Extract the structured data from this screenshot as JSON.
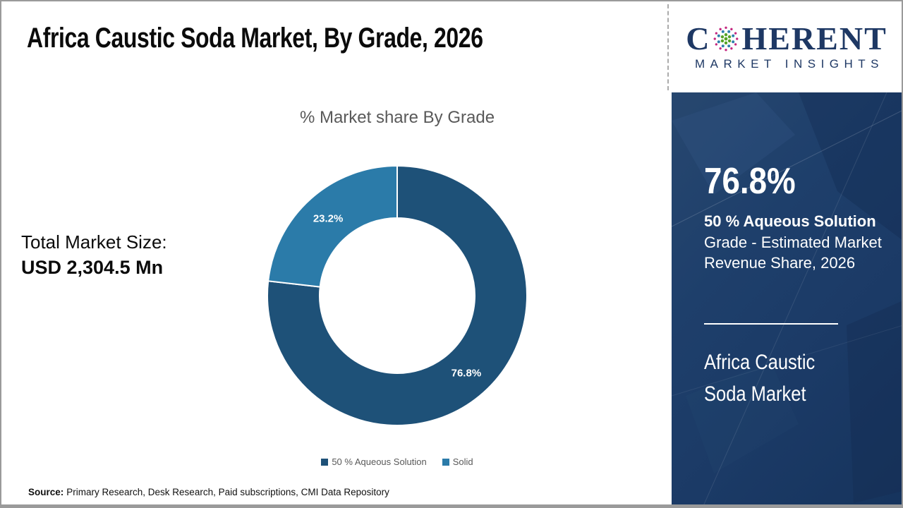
{
  "page": {
    "title": "Africa Caustic Soda Market, By Grade, 2026",
    "background_color": "#ffffff",
    "border_color": "#9a9a9a",
    "source": {
      "label": "Source:",
      "text": "Primary Research, Desk Research, Paid subscriptions, CMI Data Repository"
    }
  },
  "logo": {
    "brand_prefix": "C",
    "brand_suffix": "HERENT",
    "tagline": "MARKET INSIGHTS",
    "brand_color": "#1e3864",
    "globe_colors": {
      "outer": "#c4267f",
      "mid": "#2e7fad",
      "inner": "#56a326"
    }
  },
  "stats": {
    "label": "Total Market Size:",
    "value": "USD 2,304.5 Mn"
  },
  "chart_data": {
    "type": "pie",
    "subtype": "donut",
    "title": "% Market share By Grade",
    "categories": [
      "50 % Aqueous Solution",
      "Solid"
    ],
    "values": [
      76.8,
      23.2
    ],
    "labels": [
      "76.8%",
      "23.2%"
    ],
    "colors": [
      "#1e5178",
      "#2b7ba9"
    ],
    "start_angle_deg": 0,
    "direction": "clockwise",
    "legend_position": "bottom",
    "label_color": "#ffffff"
  },
  "side_panel": {
    "highlight_value": "76.8%",
    "highlight_segment": "50 % Aqueous Solution",
    "highlight_desc_line1": "Grade - Estimated Market",
    "highlight_desc_line2": "Revenue Share, 2026",
    "market_line1": "Africa Caustic",
    "market_line2": "Soda Market",
    "background_color": "#1b3a66",
    "text_color": "#ffffff"
  }
}
